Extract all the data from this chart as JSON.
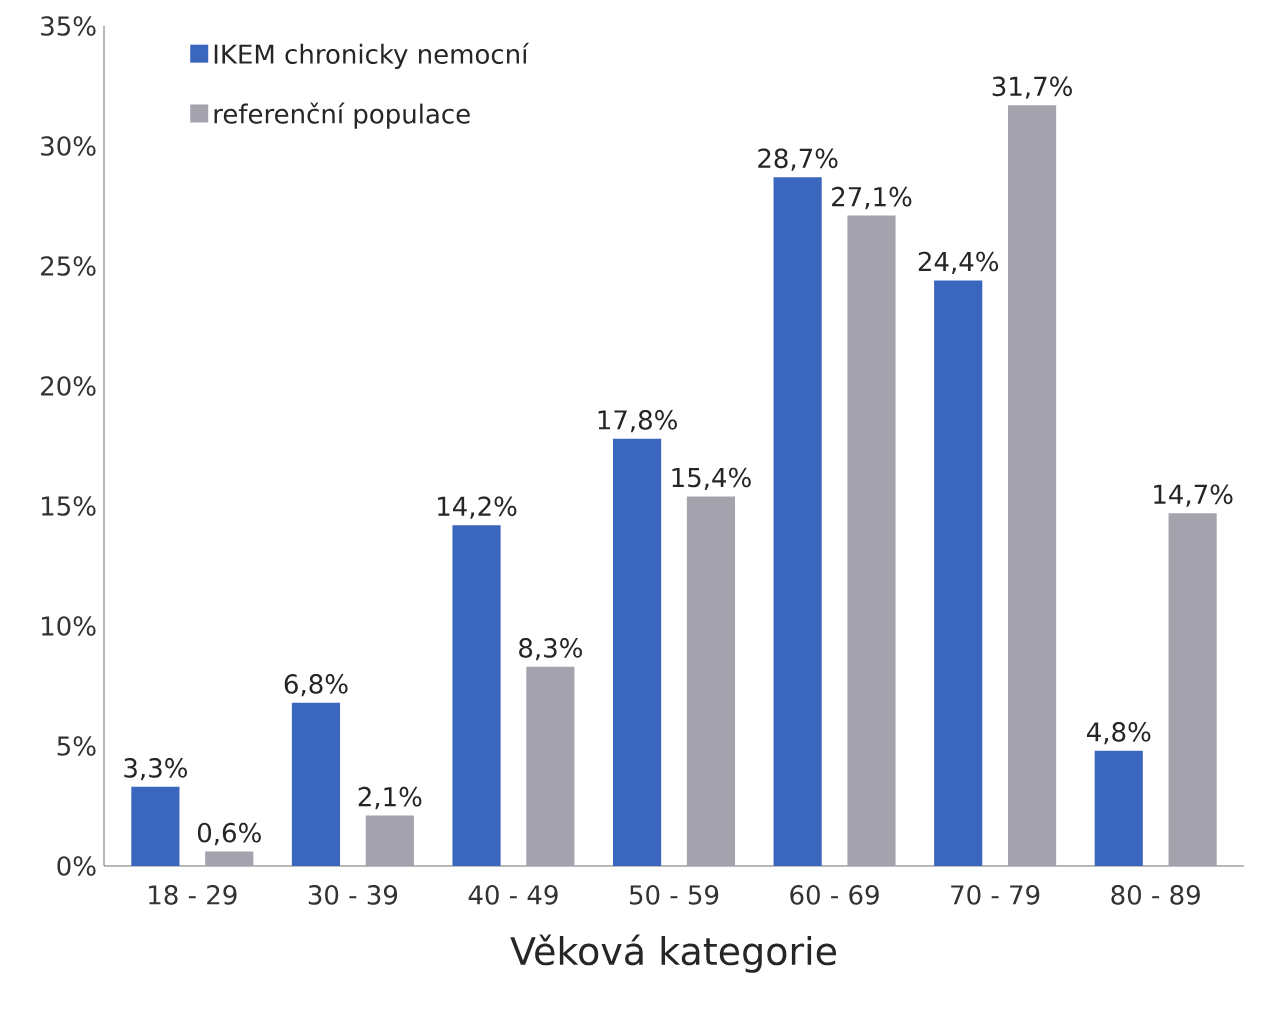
{
  "chart_data": {
    "type": "bar",
    "xlabel": "Věková kategorie",
    "categories": [
      "18 - 29",
      "30 - 39",
      "40 - 49",
      "50 - 59",
      "60 - 69",
      "70 - 79",
      "80 - 89"
    ],
    "series": [
      {
        "name": "IKEM chronicky nemocní",
        "color": "#3a66be",
        "values": [
          3.3,
          6.8,
          14.2,
          17.8,
          28.7,
          24.4,
          4.8
        ],
        "value_labels": [
          "3,3%",
          "6,8%",
          "14,2%",
          "17,8%",
          "28,7%",
          "24,4%",
          "4,8%"
        ]
      },
      {
        "name": "referenční populace",
        "color": "#a4a2ad",
        "values": [
          0.6,
          2.1,
          8.3,
          15.4,
          27.1,
          31.7,
          14.7
        ],
        "value_labels": [
          "0,6%",
          "2,1%",
          "8,3%",
          "15,4%",
          "27,1%",
          "31,7%",
          "14,7%"
        ]
      }
    ],
    "ylim": [
      0,
      35
    ],
    "yticks": [
      {
        "value": 0,
        "label": "0%"
      },
      {
        "value": 5,
        "label": "5%"
      },
      {
        "value": 10,
        "label": "10%"
      },
      {
        "value": 15,
        "label": "15%"
      },
      {
        "value": 20,
        "label": "20%"
      },
      {
        "value": 25,
        "label": "25%"
      },
      {
        "value": 30,
        "label": "30%"
      },
      {
        "value": 35,
        "label": "35%"
      }
    ],
    "legend": "top left",
    "grid": false
  }
}
